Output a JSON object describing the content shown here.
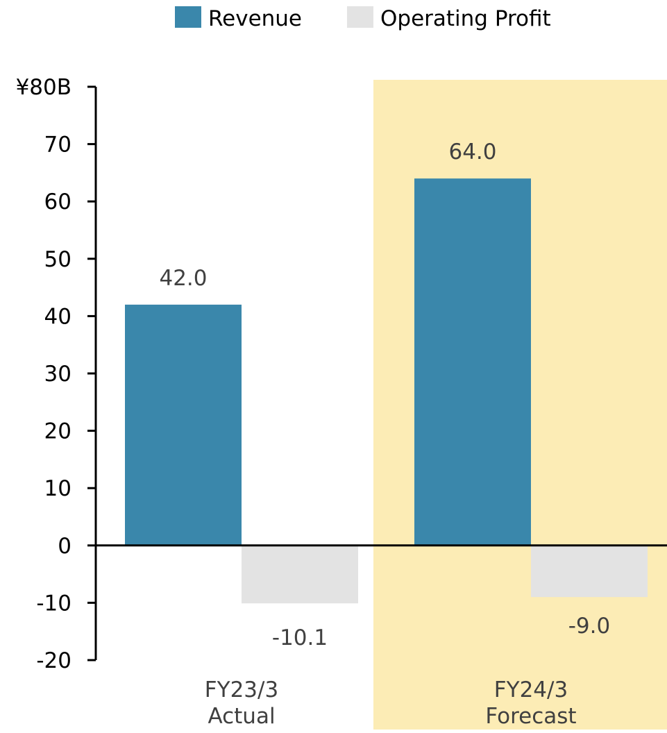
{
  "chart_data": {
    "type": "bar",
    "categories": [
      {
        "line1": "FY23/3",
        "line2": "Actual"
      },
      {
        "line1": "FY24/3",
        "line2": "Forecast"
      }
    ],
    "series": [
      {
        "name": "Revenue",
        "values": [
          42.0,
          64.0
        ],
        "labels": [
          "42.0",
          "64.0"
        ],
        "color": "#3a87ab"
      },
      {
        "name": "Operating Profit",
        "values": [
          -10.1,
          -9.0
        ],
        "labels": [
          "-10.1",
          "-9.0"
        ],
        "color": "#e3e3e3"
      }
    ],
    "ylim": [
      -20,
      80
    ],
    "yticks": [
      {
        "value": 80,
        "label": "¥80B"
      },
      {
        "value": 70,
        "label": "70"
      },
      {
        "value": 60,
        "label": "60"
      },
      {
        "value": 50,
        "label": "50"
      },
      {
        "value": 40,
        "label": "40"
      },
      {
        "value": 30,
        "label": "30"
      },
      {
        "value": 20,
        "label": "20"
      },
      {
        "value": 10,
        "label": "10"
      },
      {
        "value": 0,
        "label": "0"
      },
      {
        "value": -10,
        "label": "-10"
      },
      {
        "value": -20,
        "label": "-20"
      }
    ],
    "highlight": {
      "category_index": 1,
      "color": "#fcecb5"
    },
    "grid": false,
    "legend": "top"
  }
}
